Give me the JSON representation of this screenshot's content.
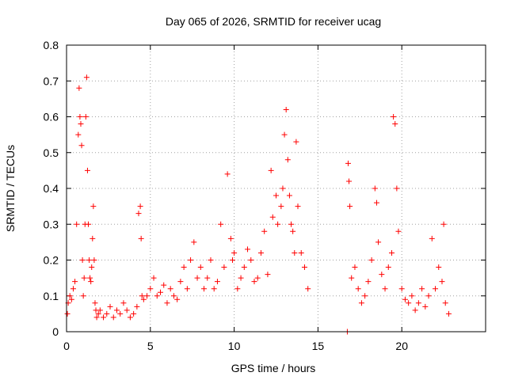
{
  "chart_data": {
    "type": "scatter",
    "title": "Day 065 of 2026, SRMTID for receiver ucag",
    "xlabel": "GPS time / hours",
    "ylabel": "SRMTID / TECUs",
    "xlim": [
      0,
      25
    ],
    "ylim": [
      0,
      0.8
    ],
    "xticks": [
      0,
      5,
      10,
      15,
      20
    ],
    "xtick_labels": [
      "0",
      "5",
      "10",
      "15",
      "20"
    ],
    "yticks": [
      0,
      0.1,
      0.2,
      0.3,
      0.4,
      0.5,
      0.6,
      0.7,
      0.8
    ],
    "ytick_labels": [
      "0",
      "0.1",
      "0.2",
      "0.3",
      "0.4",
      "0.5",
      "0.6",
      "0.7",
      "0.8"
    ],
    "grid": true,
    "marker": "+",
    "color": "#ff0000",
    "series": [
      {
        "name": "SRMTID",
        "x": [
          0.05,
          0.1,
          0.2,
          0.3,
          0.4,
          0.5,
          0.6,
          0.7,
          0.75,
          0.8,
          0.85,
          0.9,
          0.95,
          1.0,
          1.05,
          1.1,
          1.15,
          1.2,
          1.25,
          1.3,
          1.35,
          1.4,
          1.45,
          1.5,
          1.55,
          1.6,
          1.65,
          1.7,
          1.75,
          1.8,
          1.9,
          2.0,
          2.2,
          2.4,
          2.6,
          2.8,
          3.0,
          3.2,
          3.4,
          3.6,
          3.8,
          4.0,
          4.2,
          4.3,
          4.4,
          4.45,
          4.5,
          4.6,
          4.8,
          5.0,
          5.2,
          5.4,
          5.6,
          5.8,
          6.0,
          6.2,
          6.4,
          6.6,
          6.8,
          7.0,
          7.2,
          7.4,
          7.6,
          7.8,
          8.0,
          8.2,
          8.4,
          8.6,
          8.8,
          9.0,
          9.2,
          9.4,
          9.6,
          9.8,
          9.9,
          10.0,
          10.2,
          10.4,
          10.6,
          10.8,
          11.0,
          11.2,
          11.4,
          11.6,
          11.8,
          12.0,
          12.2,
          12.3,
          12.5,
          12.6,
          12.8,
          12.9,
          13.0,
          13.1,
          13.2,
          13.3,
          13.4,
          13.5,
          13.6,
          13.7,
          13.8,
          14.0,
          14.2,
          14.4,
          16.75,
          16.8,
          16.85,
          16.9,
          17.0,
          17.2,
          17.4,
          17.6,
          17.8,
          18.0,
          18.2,
          18.4,
          18.5,
          18.6,
          18.8,
          19.0,
          19.2,
          19.4,
          19.5,
          19.6,
          19.7,
          19.8,
          20.0,
          20.2,
          20.4,
          20.6,
          20.8,
          21.0,
          21.2,
          21.4,
          21.6,
          21.8,
          22.0,
          22.2,
          22.4,
          22.5,
          22.6,
          22.8
        ],
        "y": [
          0.05,
          0.08,
          0.1,
          0.09,
          0.12,
          0.14,
          0.3,
          0.55,
          0.68,
          0.6,
          0.58,
          0.52,
          0.2,
          0.1,
          0.15,
          0.3,
          0.6,
          0.71,
          0.45,
          0.3,
          0.2,
          0.15,
          0.14,
          0.18,
          0.26,
          0.35,
          0.2,
          0.08,
          0.06,
          0.04,
          0.05,
          0.06,
          0.04,
          0.05,
          0.07,
          0.04,
          0.06,
          0.05,
          0.08,
          0.06,
          0.04,
          0.05,
          0.07,
          0.33,
          0.35,
          0.26,
          0.1,
          0.09,
          0.1,
          0.12,
          0.15,
          0.1,
          0.11,
          0.13,
          0.08,
          0.12,
          0.1,
          0.09,
          0.14,
          0.18,
          0.12,
          0.2,
          0.25,
          0.15,
          0.18,
          0.12,
          0.15,
          0.2,
          0.12,
          0.14,
          0.3,
          0.18,
          0.44,
          0.26,
          0.2,
          0.22,
          0.12,
          0.15,
          0.18,
          0.23,
          0.2,
          0.14,
          0.15,
          0.22,
          0.28,
          0.16,
          0.45,
          0.32,
          0.38,
          0.3,
          0.35,
          0.4,
          0.55,
          0.62,
          0.48,
          0.38,
          0.3,
          0.28,
          0.22,
          0.53,
          0.35,
          0.22,
          0.18,
          0.12,
          0.0,
          0.47,
          0.42,
          0.35,
          0.15,
          0.18,
          0.12,
          0.08,
          0.1,
          0.14,
          0.2,
          0.4,
          0.36,
          0.25,
          0.16,
          0.12,
          0.18,
          0.22,
          0.6,
          0.58,
          0.4,
          0.28,
          0.12,
          0.09,
          0.08,
          0.1,
          0.06,
          0.08,
          0.12,
          0.07,
          0.1,
          0.26,
          0.12,
          0.18,
          0.14,
          0.3,
          0.08,
          0.05
        ]
      }
    ]
  }
}
